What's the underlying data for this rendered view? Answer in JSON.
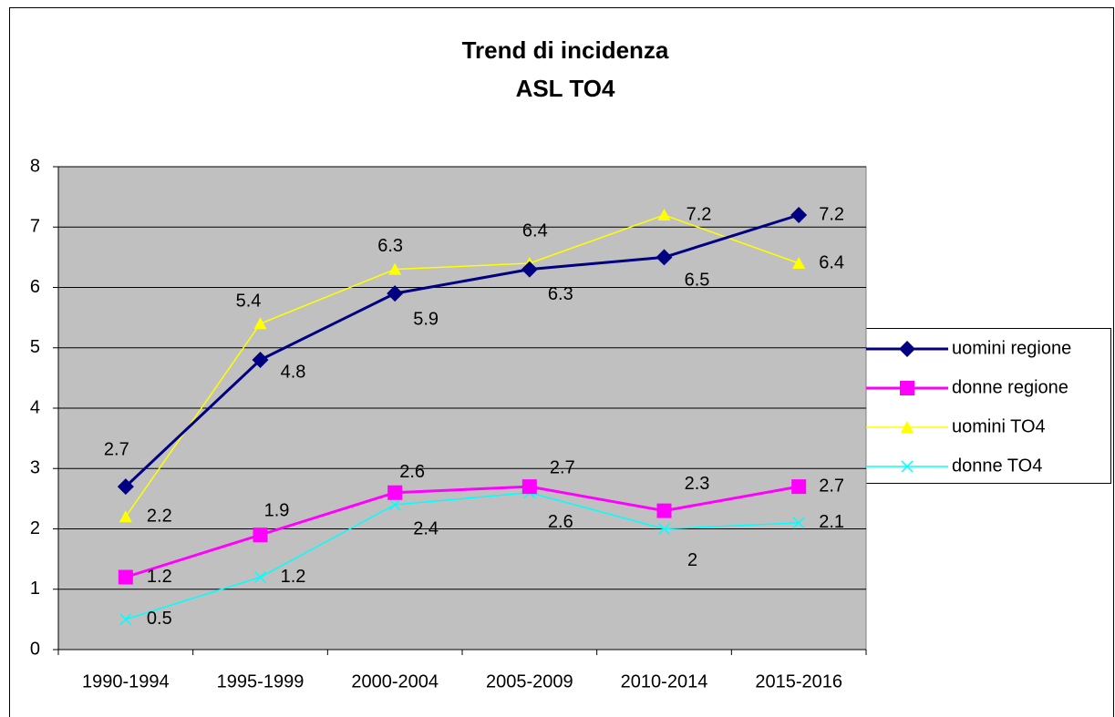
{
  "chart_data": {
    "type": "line",
    "title": "Trend di incidenza",
    "subtitle": "ASL TO4",
    "categories": [
      "1990-1994",
      "1995-1999",
      "2000-2004",
      "2005-2009",
      "2010-2014",
      "2015-2016"
    ],
    "series": [
      {
        "name": "uomini regione",
        "color": "#000080",
        "marker": "diamond",
        "values": [
          2.7,
          4.8,
          5.9,
          6.3,
          6.5,
          7.2
        ]
      },
      {
        "name": "donne regione",
        "color": "#ff00ff",
        "marker": "square",
        "values": [
          1.2,
          1.9,
          2.6,
          2.7,
          2.3,
          2.7
        ]
      },
      {
        "name": "uomini TO4",
        "color": "#ffff00",
        "marker": "triangle",
        "values": [
          2.2,
          5.4,
          6.3,
          6.4,
          7.2,
          6.4
        ]
      },
      {
        "name": "donne TO4",
        "color": "#00ffff",
        "marker": "x",
        "values": [
          0.5,
          1.2,
          2.4,
          2.6,
          2,
          2.1
        ]
      }
    ],
    "ylim": [
      0,
      8
    ],
    "yticks": [
      0,
      1,
      2,
      3,
      4,
      5,
      6,
      7,
      8
    ],
    "grid": true,
    "legend": "right",
    "plot_background": "#c0c0c0"
  }
}
